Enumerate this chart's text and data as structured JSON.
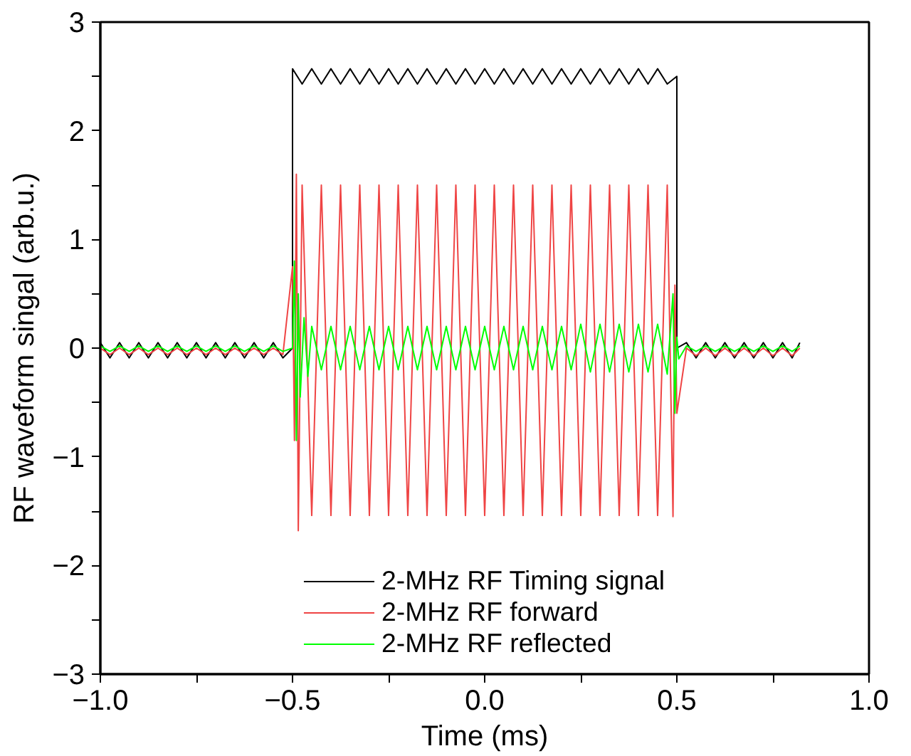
{
  "chart_data": {
    "type": "line",
    "xlabel": "Time (ms)",
    "ylabel": "RF waveform singal (arb.u.)",
    "xlim": [
      -1.0,
      1.0
    ],
    "ylim": [
      -3,
      3
    ],
    "xticks": [
      {
        "value": -1.0,
        "label": "−1.0"
      },
      {
        "value": -0.75,
        "label": null
      },
      {
        "value": -0.5,
        "label": "−0.5"
      },
      {
        "value": -0.25,
        "label": null
      },
      {
        "value": 0.0,
        "label": "0.0"
      },
      {
        "value": 0.25,
        "label": null
      },
      {
        "value": 0.5,
        "label": "0.5"
      },
      {
        "value": 0.75,
        "label": null
      },
      {
        "value": 1.0,
        "label": "1.0"
      }
    ],
    "yticks": [
      {
        "value": -3,
        "label": "−3"
      },
      {
        "value": -2.5,
        "label": null
      },
      {
        "value": -2,
        "label": "−2"
      },
      {
        "value": -1.5,
        "label": null
      },
      {
        "value": -1,
        "label": "−1"
      },
      {
        "value": -0.5,
        "label": null
      },
      0,
      {
        "value": 0.5,
        "label": null
      },
      1,
      {
        "value": 1.5,
        "label": null
      },
      2,
      {
        "value": 2.5,
        "label": null
      },
      3
    ],
    "grid": false,
    "legend": "bottom",
    "line_style": "solid",
    "marker": "none",
    "series": [
      {
        "name": "2-MHz RF Timing signal",
        "color": "#000000",
        "x": [
          -1.0,
          -0.975,
          -0.95,
          -0.925,
          -0.9,
          -0.875,
          -0.85,
          -0.825,
          -0.8,
          -0.775,
          -0.75,
          -0.725,
          -0.7,
          -0.675,
          -0.65,
          -0.625,
          -0.6,
          -0.575,
          -0.55,
          -0.525,
          -0.5,
          -0.5,
          -0.475,
          -0.45,
          -0.425,
          -0.4,
          -0.375,
          -0.35,
          -0.325,
          -0.3,
          -0.275,
          -0.25,
          -0.225,
          -0.2,
          -0.175,
          -0.15,
          -0.125,
          -0.1,
          -0.075,
          -0.05,
          -0.025,
          0.0,
          0.025,
          0.05,
          0.075,
          0.1,
          0.125,
          0.15,
          0.175,
          0.2,
          0.225,
          0.25,
          0.275,
          0.3,
          0.325,
          0.35,
          0.375,
          0.4,
          0.425,
          0.45,
          0.475,
          0.5,
          0.5,
          0.525,
          0.55,
          0.575,
          0.6,
          0.625,
          0.65,
          0.675,
          0.7,
          0.725,
          0.75,
          0.775,
          0.8,
          0.82
        ],
        "values": [
          0.05,
          -0.09,
          0.05,
          -0.09,
          0.05,
          -0.09,
          0.05,
          -0.09,
          0.05,
          -0.09,
          0.05,
          -0.09,
          0.05,
          -0.09,
          0.05,
          -0.09,
          0.05,
          -0.09,
          0.05,
          -0.09,
          0.0,
          2.57,
          2.43,
          2.57,
          2.43,
          2.57,
          2.43,
          2.57,
          2.43,
          2.57,
          2.43,
          2.57,
          2.43,
          2.57,
          2.43,
          2.57,
          2.43,
          2.57,
          2.43,
          2.57,
          2.43,
          2.57,
          2.43,
          2.57,
          2.43,
          2.57,
          2.43,
          2.57,
          2.43,
          2.57,
          2.43,
          2.57,
          2.43,
          2.57,
          2.43,
          2.57,
          2.43,
          2.57,
          2.43,
          2.57,
          2.43,
          2.5,
          0.0,
          0.05,
          -0.09,
          0.05,
          -0.09,
          0.05,
          -0.09,
          0.05,
          -0.09,
          0.05,
          -0.09,
          0.05,
          -0.09,
          0.05
        ]
      },
      {
        "name": "2-MHz RF forward",
        "color": "#ef4444",
        "x": [
          -1.0,
          -0.975,
          -0.95,
          -0.925,
          -0.9,
          -0.875,
          -0.85,
          -0.825,
          -0.8,
          -0.775,
          -0.75,
          -0.725,
          -0.7,
          -0.675,
          -0.65,
          -0.625,
          -0.6,
          -0.575,
          -0.55,
          -0.525,
          -0.5,
          -0.495,
          -0.49,
          -0.485,
          -0.475,
          -0.45,
          -0.425,
          -0.4,
          -0.375,
          -0.35,
          -0.325,
          -0.3,
          -0.275,
          -0.25,
          -0.225,
          -0.2,
          -0.175,
          -0.15,
          -0.125,
          -0.1,
          -0.075,
          -0.05,
          -0.025,
          0.0,
          0.025,
          0.05,
          0.075,
          0.1,
          0.125,
          0.15,
          0.175,
          0.2,
          0.225,
          0.25,
          0.275,
          0.3,
          0.325,
          0.35,
          0.375,
          0.4,
          0.425,
          0.45,
          0.475,
          0.49,
          0.495,
          0.5,
          0.525,
          0.55,
          0.575,
          0.6,
          0.625,
          0.65,
          0.675,
          0.7,
          0.725,
          0.75,
          0.775,
          0.8,
          0.82
        ],
        "values": [
          0.0,
          -0.06,
          0.0,
          -0.06,
          0.0,
          -0.06,
          0.0,
          -0.06,
          0.0,
          -0.06,
          0.0,
          -0.06,
          0.0,
          -0.06,
          0.0,
          -0.06,
          0.0,
          -0.06,
          0.0,
          -0.06,
          0.75,
          -0.85,
          1.6,
          -1.68,
          1.5,
          -1.54,
          1.5,
          -1.54,
          1.5,
          -1.54,
          1.5,
          -1.54,
          1.5,
          -1.54,
          1.5,
          -1.54,
          1.5,
          -1.54,
          1.5,
          -1.54,
          1.5,
          -1.54,
          1.5,
          -1.54,
          1.5,
          -1.54,
          1.5,
          -1.54,
          1.5,
          -1.54,
          1.5,
          -1.54,
          1.5,
          -1.54,
          1.5,
          -1.54,
          1.5,
          -1.54,
          1.5,
          -1.54,
          1.5,
          -1.54,
          1.5,
          -1.55,
          0.58,
          -0.6,
          0.0,
          -0.07,
          0.0,
          -0.07,
          0.0,
          -0.07,
          0.0,
          -0.07,
          0.0,
          -0.07,
          0.0,
          -0.07,
          0.0
        ]
      },
      {
        "name": "2-MHz RF reflected",
        "color": "#00ff00",
        "x": [
          -1.0,
          -0.975,
          -0.95,
          -0.925,
          -0.9,
          -0.875,
          -0.85,
          -0.825,
          -0.8,
          -0.775,
          -0.75,
          -0.725,
          -0.7,
          -0.675,
          -0.65,
          -0.625,
          -0.6,
          -0.575,
          -0.55,
          -0.525,
          -0.5,
          -0.495,
          -0.49,
          -0.485,
          -0.48,
          -0.47,
          -0.46,
          -0.45,
          -0.425,
          -0.4,
          -0.375,
          -0.35,
          -0.325,
          -0.3,
          -0.275,
          -0.25,
          -0.225,
          -0.2,
          -0.175,
          -0.15,
          -0.125,
          -0.1,
          -0.075,
          -0.05,
          -0.025,
          0.0,
          0.025,
          0.05,
          0.075,
          0.1,
          0.125,
          0.15,
          0.175,
          0.2,
          0.225,
          0.25,
          0.275,
          0.3,
          0.325,
          0.35,
          0.375,
          0.4,
          0.425,
          0.45,
          0.475,
          0.49,
          0.495,
          0.5,
          0.505,
          0.525,
          0.55,
          0.575,
          0.6,
          0.625,
          0.65,
          0.675,
          0.7,
          0.725,
          0.75,
          0.775,
          0.8,
          0.82
        ],
        "values": [
          0.02,
          -0.03,
          0.02,
          -0.03,
          0.02,
          -0.03,
          0.02,
          -0.03,
          0.02,
          -0.03,
          0.02,
          -0.03,
          0.02,
          -0.03,
          0.02,
          -0.03,
          0.02,
          -0.03,
          0.02,
          -0.03,
          0.0,
          0.8,
          -0.85,
          0.5,
          -0.45,
          0.28,
          -0.26,
          0.2,
          -0.2,
          0.2,
          -0.2,
          0.2,
          -0.2,
          0.2,
          -0.2,
          0.2,
          -0.2,
          0.2,
          -0.2,
          0.2,
          -0.2,
          0.2,
          -0.2,
          0.2,
          -0.2,
          0.2,
          -0.2,
          0.2,
          -0.2,
          0.2,
          -0.2,
          0.2,
          -0.2,
          0.2,
          -0.2,
          0.22,
          -0.22,
          0.22,
          -0.22,
          0.22,
          -0.22,
          0.22,
          -0.22,
          0.22,
          -0.24,
          0.5,
          -0.6,
          0.1,
          -0.1,
          0.02,
          -0.03,
          0.02,
          -0.03,
          0.02,
          -0.03,
          0.02,
          -0.03,
          0.02,
          -0.03,
          0.02,
          -0.03,
          0.02
        ]
      }
    ]
  }
}
